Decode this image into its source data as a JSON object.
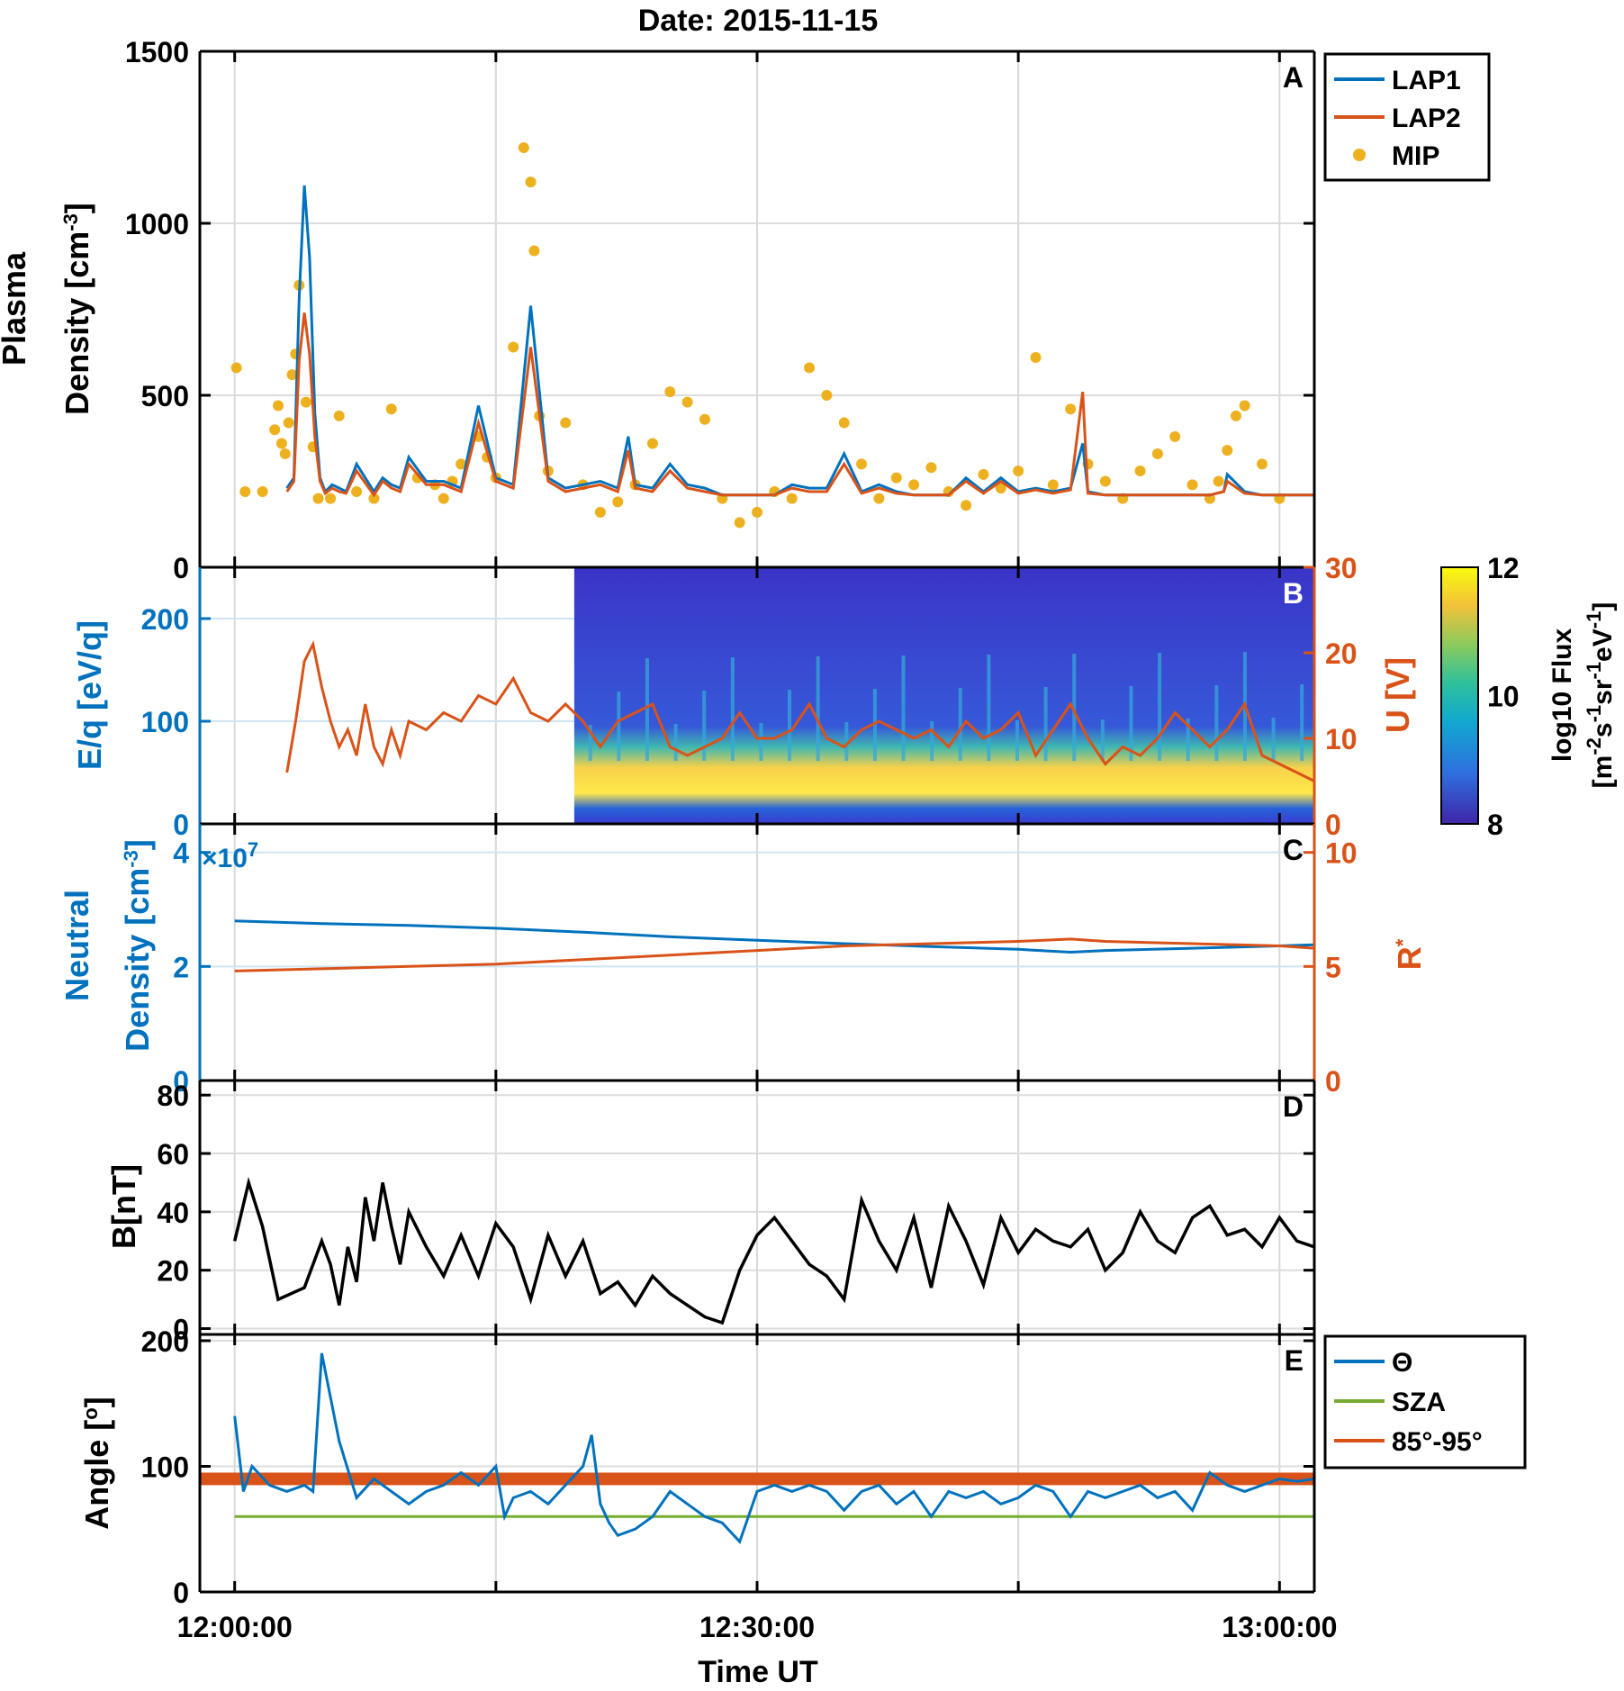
{
  "figure": {
    "title": "Date: 2015-11-15",
    "xlabel": "Time UT"
  },
  "colors": {
    "blue": "#0072BD",
    "orange": "#D95319",
    "yellow": "#EDB120",
    "green": "#77AC30",
    "black": "#000000"
  },
  "chart_data": [
    {
      "panel": "A",
      "type": "line",
      "title": "Date: 2015-11-15",
      "ylabel_lines": [
        "Plasma",
        "Density [cm",
        "-3",
        "]"
      ],
      "ylim": [
        0,
        1500
      ],
      "yticks": [
        0,
        500,
        1000,
        1500
      ],
      "xlim_minutes": [
        -2,
        62
      ],
      "legend": [
        "LAP1",
        "LAP2",
        "MIP"
      ],
      "legend_position": "top-right outside",
      "series": [
        {
          "name": "LAP1",
          "x": [
            3,
            3.4,
            3.7,
            4,
            4.3,
            4.6,
            4.9,
            5.2,
            5.6,
            6,
            6.4,
            7,
            8,
            8.5,
            9,
            9.5,
            10,
            11,
            12,
            13,
            14,
            15,
            16,
            17,
            18,
            19,
            20,
            21,
            22,
            22.6,
            23,
            24,
            25,
            26,
            27,
            28,
            29,
            30,
            31,
            32,
            33,
            34,
            35,
            36,
            37,
            38,
            39,
            40,
            41,
            42,
            43,
            44,
            45,
            46,
            47,
            48,
            48.7,
            49,
            50,
            51,
            52,
            53,
            54,
            55,
            56,
            56.8,
            57,
            58,
            59,
            60,
            61,
            62
          ],
          "y": [
            230,
            260,
            780,
            1110,
            900,
            450,
            260,
            220,
            240,
            230,
            220,
            300,
            220,
            260,
            240,
            230,
            320,
            250,
            250,
            230,
            470,
            260,
            240,
            760,
            260,
            230,
            240,
            250,
            230,
            380,
            240,
            230,
            300,
            240,
            230,
            210,
            210,
            210,
            210,
            240,
            230,
            230,
            330,
            220,
            240,
            220,
            210,
            210,
            210,
            260,
            220,
            260,
            220,
            230,
            220,
            230,
            360,
            220,
            210,
            210,
            210,
            210,
            210,
            210,
            210,
            220,
            270,
            220,
            210,
            210,
            210,
            210
          ]
        },
        {
          "name": "LAP2",
          "x": [
            3,
            3.4,
            3.7,
            4,
            4.3,
            4.6,
            4.9,
            5.2,
            5.6,
            6,
            6.4,
            7,
            8,
            8.5,
            9,
            9.5,
            10,
            11,
            12,
            13,
            14,
            15,
            16,
            17,
            18,
            19,
            20,
            21,
            22,
            22.6,
            23,
            24,
            25,
            26,
            27,
            28,
            29,
            30,
            31,
            32,
            33,
            34,
            35,
            36,
            37,
            38,
            39,
            40,
            41,
            42,
            43,
            44,
            45,
            46,
            47,
            48,
            48.7,
            49,
            50,
            51,
            52,
            53,
            54,
            55,
            56,
            56.8,
            57,
            58,
            59,
            60,
            61,
            62
          ],
          "y": [
            220,
            250,
            600,
            740,
            620,
            380,
            250,
            215,
            230,
            220,
            215,
            280,
            210,
            250,
            230,
            220,
            300,
            240,
            240,
            220,
            420,
            250,
            230,
            640,
            250,
            220,
            230,
            240,
            220,
            340,
            230,
            220,
            280,
            230,
            220,
            210,
            210,
            210,
            210,
            230,
            220,
            220,
            300,
            215,
            230,
            215,
            210,
            210,
            210,
            250,
            215,
            250,
            215,
            225,
            215,
            225,
            510,
            215,
            210,
            210,
            210,
            210,
            210,
            210,
            210,
            220,
            250,
            215,
            210,
            210,
            210,
            210
          ]
        },
        {
          "name": "MIP",
          "mode": "markers",
          "x": [
            0.1,
            0.6,
            1.6,
            2.3,
            2.5,
            2.7,
            2.9,
            3.1,
            3.3,
            3.5,
            3.7,
            4.1,
            4.5,
            4.8,
            5.5,
            6,
            7,
            8,
            9,
            10.5,
            11.5,
            12,
            12.5,
            13,
            14,
            14.5,
            15,
            16,
            16.6,
            17,
            17.2,
            17.5,
            18,
            19,
            20,
            21,
            22,
            23,
            24,
            25,
            26,
            27,
            28,
            29,
            30,
            31,
            32,
            33,
            34,
            35,
            36,
            37,
            38,
            39,
            40,
            41,
            42,
            43,
            44,
            45,
            46,
            47,
            48,
            49,
            50,
            51,
            52,
            53,
            54,
            55,
            56,
            56.5,
            57,
            57.5,
            58,
            59,
            60
          ],
          "y": [
            580,
            220,
            220,
            400,
            470,
            360,
            330,
            420,
            560,
            620,
            820,
            480,
            350,
            200,
            200,
            440,
            220,
            200,
            460,
            260,
            240,
            200,
            250,
            300,
            380,
            320,
            260,
            640,
            1220,
            1120,
            920,
            440,
            280,
            420,
            240,
            160,
            190,
            240,
            360,
            510,
            480,
            430,
            200,
            130,
            160,
            220,
            200,
            580,
            500,
            420,
            300,
            200,
            260,
            240,
            290,
            220,
            180,
            270,
            230,
            280,
            610,
            240,
            460,
            300,
            250,
            200,
            280,
            330,
            380,
            240,
            200,
            250,
            340,
            440,
            470,
            300,
            200
          ]
        }
      ]
    },
    {
      "panel": "B",
      "type": "heatmap",
      "ylabel": "E/q [eV/q]",
      "ylim": [
        0,
        250
      ],
      "yticks": [
        0,
        100,
        200
      ],
      "y2label": "U [V]",
      "y2lim": [
        0,
        30
      ],
      "y2ticks": [
        0,
        10,
        20,
        30
      ],
      "heatmap_start_minutes": 19.5,
      "colorbar": {
        "label_lines": [
          "log10 Flux",
          "[m",
          "-2",
          "s",
          "-1",
          "sr",
          "-1",
          "eV",
          "-1",
          "]"
        ],
        "clim": [
          8,
          12
        ],
        "ticks": [
          8,
          10,
          12
        ]
      },
      "series": [
        {
          "name": "U",
          "axis": "right",
          "x": [
            3,
            3.5,
            4,
            4.5,
            5,
            5.5,
            6,
            6.5,
            7,
            7.5,
            8,
            8.5,
            9,
            9.5,
            10,
            11,
            12,
            13,
            14,
            15,
            16,
            17,
            18,
            19,
            20,
            21,
            22,
            23,
            24,
            25,
            26,
            27,
            28,
            29,
            30,
            31,
            32,
            33,
            34,
            35,
            36,
            37,
            38,
            39,
            40,
            41,
            42,
            43,
            44,
            45,
            46,
            47,
            48,
            49,
            50,
            51,
            52,
            53,
            54,
            55,
            56,
            57,
            58,
            59,
            60,
            61,
            62
          ],
          "y": [
            6,
            12,
            19,
            21,
            16,
            12,
            9,
            11,
            8,
            14,
            9,
            7,
            11,
            8,
            12,
            11,
            13,
            12,
            15,
            14,
            17,
            13,
            12,
            14,
            12,
            9,
            12,
            13,
            14,
            9,
            8,
            9,
            10,
            13,
            10,
            10,
            11,
            14,
            10,
            9,
            11,
            12,
            11,
            10,
            11,
            9,
            12,
            10,
            11,
            13,
            8,
            11,
            14,
            10,
            7,
            9,
            8,
            10,
            13,
            11,
            9,
            11,
            14,
            8,
            7,
            6,
            5
          ]
        }
      ]
    },
    {
      "panel": "C",
      "type": "line",
      "ylabel_lines": [
        "Neutral",
        "Density [cm",
        "-3",
        "]"
      ],
      "ylim": [
        0,
        4.5
      ],
      "yticks": [
        0,
        2,
        4
      ],
      "y_multiplier": "×10",
      "y_multiplier_exp": "7",
      "y2label": "R",
      "y2label_sup": "*",
      "y2lim": [
        0,
        11.25
      ],
      "y2ticks": [
        0,
        5,
        10
      ],
      "series": [
        {
          "name": "Neutral density",
          "axis": "left",
          "x": [
            0,
            5,
            10,
            15,
            20,
            25,
            30,
            35,
            40,
            45,
            48,
            50,
            55,
            60,
            62
          ],
          "y": [
            2.8,
            2.75,
            2.72,
            2.67,
            2.6,
            2.52,
            2.46,
            2.4,
            2.35,
            2.3,
            2.25,
            2.28,
            2.32,
            2.36,
            2.38
          ]
        },
        {
          "name": "R*",
          "axis": "right",
          "x": [
            0,
            5,
            10,
            15,
            20,
            25,
            30,
            35,
            40,
            45,
            48,
            50,
            55,
            60,
            62
          ],
          "y": [
            4.8,
            4.9,
            5.0,
            5.1,
            5.3,
            5.5,
            5.7,
            5.9,
            6.0,
            6.1,
            6.2,
            6.1,
            6.0,
            5.9,
            5.8
          ]
        }
      ]
    },
    {
      "panel": "D",
      "type": "line",
      "ylabel": "B[nT]",
      "ylim": [
        -2,
        85
      ],
      "yticks": [
        0,
        20,
        40,
        60,
        80
      ],
      "series": [
        {
          "name": "B",
          "x": [
            0,
            0.8,
            1.6,
            2.5,
            4,
            5,
            5.5,
            6,
            6.5,
            7,
            7.5,
            8,
            8.5,
            9,
            9.5,
            10,
            11,
            12,
            13,
            14,
            15,
            16,
            17,
            18,
            19,
            20,
            21,
            22,
            23,
            24,
            25,
            26,
            27,
            28,
            29,
            30,
            31,
            32,
            33,
            34,
            35,
            36,
            37,
            38,
            39,
            40,
            41,
            42,
            43,
            44,
            45,
            46,
            47,
            48,
            49,
            50,
            51,
            52,
            53,
            54,
            55,
            56,
            57,
            58,
            59,
            60,
            61,
            62
          ],
          "y": [
            30,
            50,
            35,
            10,
            14,
            30,
            22,
            8,
            28,
            16,
            45,
            30,
            50,
            35,
            22,
            40,
            28,
            18,
            32,
            18,
            36,
            28,
            10,
            32,
            18,
            30,
            12,
            16,
            8,
            18,
            12,
            8,
            4,
            2,
            20,
            32,
            38,
            30,
            22,
            18,
            10,
            44,
            30,
            20,
            38,
            14,
            42,
            30,
            15,
            38,
            26,
            34,
            30,
            28,
            34,
            20,
            26,
            40,
            30,
            26,
            38,
            42,
            32,
            34,
            28,
            38,
            30,
            28
          ]
        }
      ]
    },
    {
      "panel": "E",
      "type": "line",
      "ylabel": "Angle [",
      "ylabel_sup": "o",
      "ylabel_end": "]",
      "ylim": [
        0,
        205
      ],
      "yticks": [
        0,
        100,
        200
      ],
      "legend": [
        "Θ",
        "SZA",
        "85°-95°"
      ],
      "legend_position": "right outside",
      "band": [
        85,
        95
      ],
      "series": [
        {
          "name": "Θ",
          "x": [
            0,
            0.5,
            1,
            2,
            3,
            4,
            4.5,
            5,
            6,
            7,
            8,
            9,
            10,
            11,
            12,
            13,
            14,
            15,
            15.5,
            16,
            17,
            18,
            19,
            20,
            20.5,
            21,
            21.5,
            22,
            23,
            24,
            25,
            26,
            27,
            28,
            29,
            30,
            31,
            32,
            33,
            34,
            35,
            36,
            37,
            38,
            39,
            40,
            41,
            42,
            43,
            44,
            45,
            46,
            47,
            48,
            49,
            50,
            51,
            52,
            53,
            54,
            55,
            56,
            57,
            58,
            59,
            60,
            61,
            62
          ],
          "y": [
            140,
            80,
            100,
            85,
            80,
            85,
            80,
            190,
            120,
            75,
            90,
            80,
            70,
            80,
            85,
            95,
            85,
            100,
            60,
            75,
            80,
            70,
            85,
            100,
            125,
            70,
            55,
            45,
            50,
            60,
            80,
            70,
            60,
            55,
            40,
            80,
            85,
            80,
            85,
            80,
            65,
            80,
            85,
            70,
            80,
            60,
            80,
            75,
            80,
            70,
            75,
            85,
            80,
            60,
            80,
            75,
            80,
            85,
            75,
            80,
            65,
            95,
            85,
            80,
            85,
            90,
            88,
            90
          ]
        },
        {
          "name": "SZA",
          "x": [
            0,
            62
          ],
          "y": [
            60,
            60
          ]
        }
      ]
    }
  ],
  "x_axis": {
    "tick_minutes": [
      0,
      15,
      30,
      45,
      60
    ],
    "major_labels": [
      {
        "minute": 0,
        "label": "12:00:00"
      },
      {
        "minute": 30,
        "label": "12:30:00"
      },
      {
        "minute": 60,
        "label": "13:00:00"
      }
    ]
  }
}
